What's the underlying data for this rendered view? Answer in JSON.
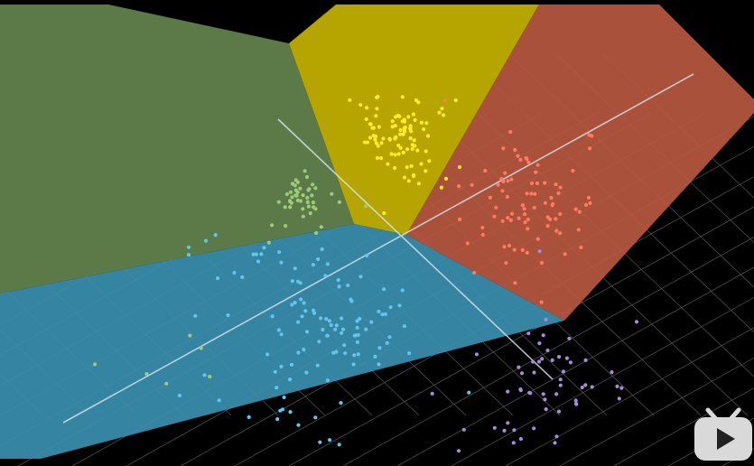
{
  "scene": {
    "description_free": true,
    "background": "#000000",
    "grid_color": "#9aa0a6",
    "axis_color": "#d8e8f0"
  },
  "regions": [
    {
      "name": "green",
      "fill": "#5b7a47",
      "dot_color": "#9ecb7a"
    },
    {
      "name": "yellow",
      "fill": "#b6a400",
      "dot_color": "#ffea2a"
    },
    {
      "name": "red",
      "fill": "#b85840",
      "dot_color": "#ff7a60"
    },
    {
      "name": "blue",
      "fill": "#3a8fb0",
      "dot_color": "#64c4ee"
    },
    {
      "name": "purple",
      "fill": "none",
      "dot_color": "#a98ad8"
    }
  ],
  "watermark": {
    "icon": "bilibili-tv-icon",
    "color": "#d9d9d9"
  }
}
